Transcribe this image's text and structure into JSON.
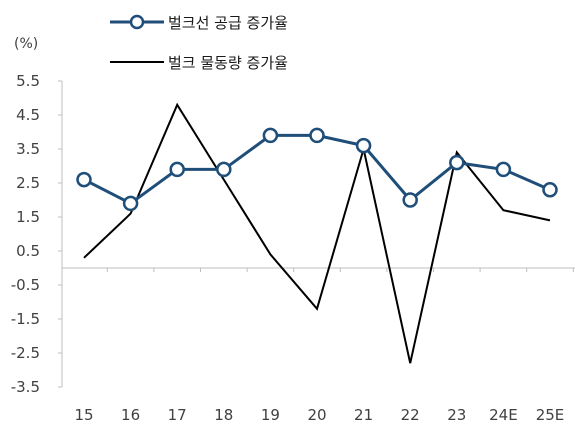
{
  "chart_data": {
    "type": "line",
    "unit_label": "(%)",
    "categories": [
      "15",
      "16",
      "17",
      "18",
      "19",
      "20",
      "21",
      "22",
      "23",
      "24E",
      "25E"
    ],
    "ylim": [
      -3.5,
      5.5
    ],
    "yticks": [
      "5.5",
      "4.5",
      "3.5",
      "2.5",
      "1.5",
      "0.5",
      "-0.5",
      "-1.5",
      "-2.5",
      "-3.5"
    ],
    "ytick_values": [
      5.5,
      4.5,
      3.5,
      2.5,
      1.5,
      0.5,
      -0.5,
      -1.5,
      -2.5,
      -3.5
    ],
    "grid": false,
    "legend_position": "top",
    "series": [
      {
        "name": "벌크선 공급 증가율",
        "color": "#1f4e79",
        "marker": "circle",
        "values": [
          2.6,
          1.9,
          2.9,
          2.9,
          3.9,
          3.9,
          3.6,
          2.0,
          3.1,
          2.9,
          2.3
        ]
      },
      {
        "name": "벌크 물동량 증가율",
        "color": "#000000",
        "marker": "none",
        "values": [
          0.3,
          1.6,
          4.8,
          2.6,
          0.4,
          -1.2,
          3.5,
          -2.8,
          3.4,
          1.7,
          1.4
        ]
      }
    ]
  }
}
